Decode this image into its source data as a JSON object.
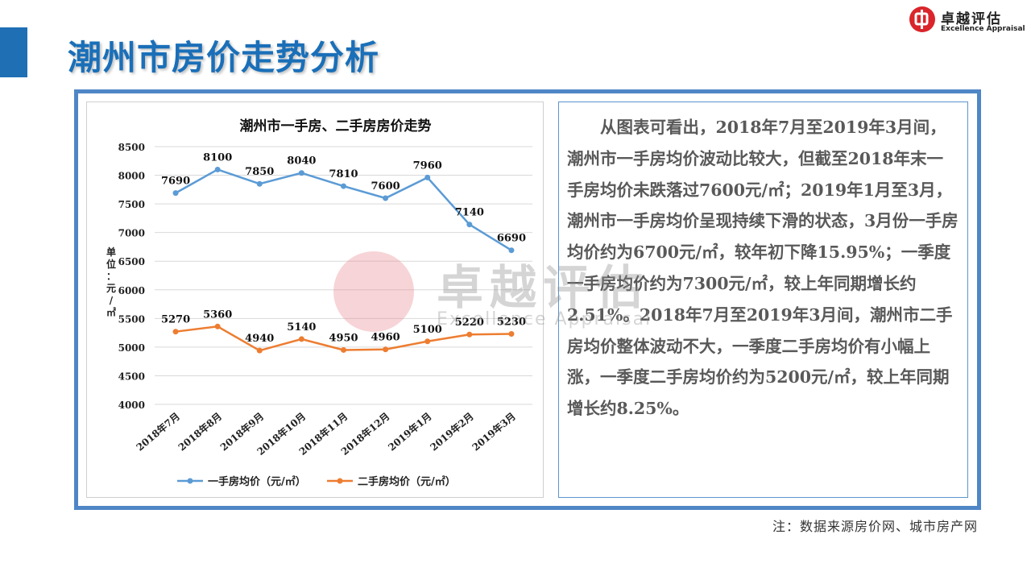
{
  "page": {
    "title": "潮州市房价走势分析",
    "logo_cn": "卓越评估",
    "logo_en": "Excellence Appraisal",
    "watermark_cn": "卓越评估",
    "watermark_en": "Excellence Appraisal",
    "note": "注：数据来源房价网、城市房产网",
    "paragraph": "从图表可看出，2018年7月至2019年3月间，潮州市一手房均价波动比较大，但截至2018年末一手房均价未跌落过7600元/㎡；2019年1月至3月，潮州市一手房均价呈现持续下滑的状态，3月份一手房均价约为6700元/㎡，较年初下降15.95%；一季度一手房均价约为7300元/㎡，较上年同期增长约2.51%。2018年7月至2019年3月间，潮州市二手房均价整体波动不大，一季度二手房均价有小幅上涨，一季度二手房均价约为5200元/㎡，较上年同期增长约8.25%。",
    "colors": {
      "accent": "#1a6fb8",
      "frame": "#4f86c6",
      "series1": "#5b9bd5",
      "series2": "#ed7d31",
      "logo_red": "#d9252b"
    }
  },
  "chart_data": {
    "type": "line",
    "title": "潮州市一手房、二手房房价走势",
    "ylabel": "单位：元/㎡",
    "ylim": [
      4000,
      8500
    ],
    "yticks": [
      4000,
      4500,
      5000,
      5500,
      6000,
      6500,
      7000,
      7500,
      8000,
      8500
    ],
    "grid": true,
    "legend_position": "bottom",
    "categories": [
      "2018年7月",
      "2018年8月",
      "2018年9月",
      "2018年10月",
      "2018年11月",
      "2018年12月",
      "2019年1月",
      "2019年2月",
      "2019年3月"
    ],
    "series": [
      {
        "name": "一手房均价（元/㎡）",
        "color": "#5b9bd5",
        "values": [
          7690,
          8100,
          7850,
          8040,
          7810,
          7600,
          7960,
          7140,
          6690
        ]
      },
      {
        "name": "二手房均价（元/㎡）",
        "color": "#ed7d31",
        "values": [
          5270,
          5360,
          4940,
          5140,
          4950,
          4960,
          5100,
          5220,
          5230
        ]
      }
    ]
  }
}
